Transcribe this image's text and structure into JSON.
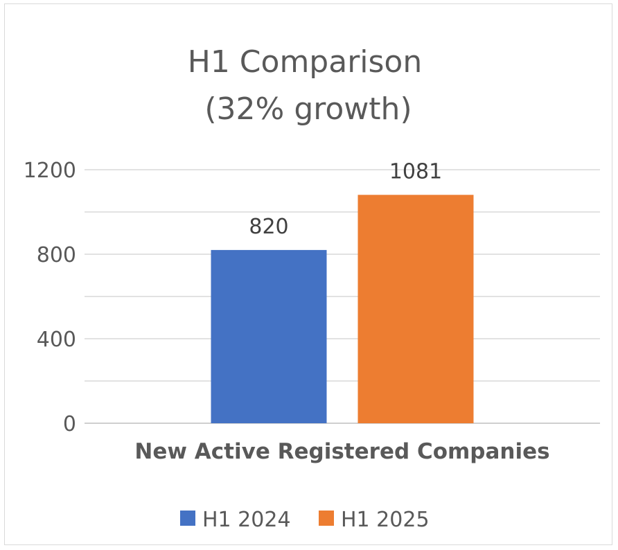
{
  "chart_data": {
    "type": "bar",
    "title_lines": [
      "H1 Comparison",
      "(32% growth)"
    ],
    "categories": [
      "New Active Registered Companies"
    ],
    "series": [
      {
        "name": "H1 2024",
        "values": [
          820
        ],
        "color": "#4472c4"
      },
      {
        "name": "H1 2025",
        "values": [
          1081
        ],
        "color": "#ed7d31"
      }
    ],
    "ylim": [
      0,
      1200
    ],
    "y_ticks": [
      0,
      400,
      800,
      1200
    ],
    "y_minor_step": 200,
    "data_labels": [
      "820",
      "1081"
    ],
    "grid": true,
    "legend_position": "bottom"
  }
}
